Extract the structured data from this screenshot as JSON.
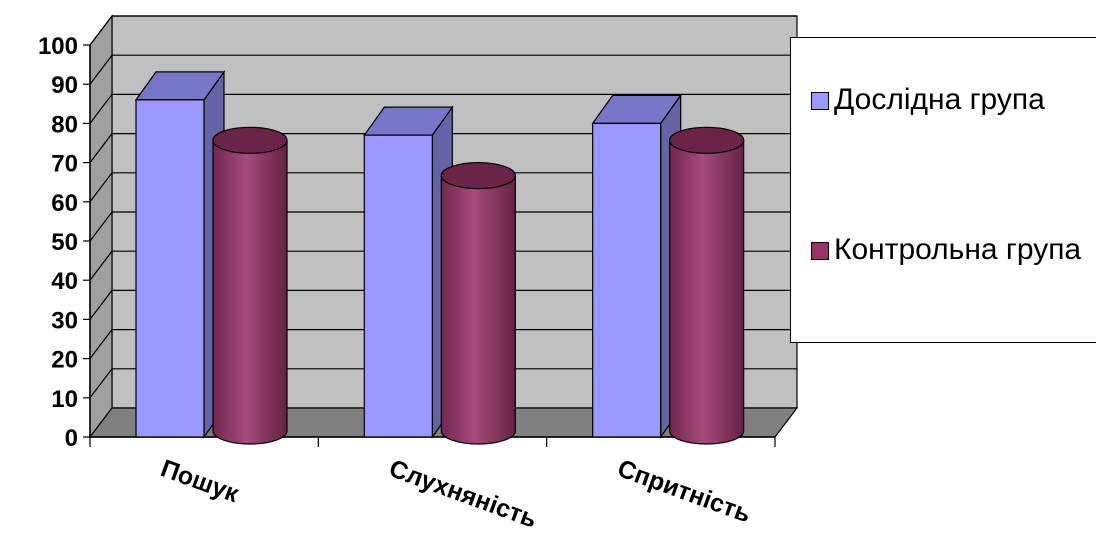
{
  "chart_data": {
    "type": "bar",
    "categories": [
      "Пошук",
      "Слухняність",
      "Спритність"
    ],
    "series": [
      {
        "name": "Дослідна група",
        "values": [
          86,
          77,
          80
        ],
        "color": "#9999FF",
        "shape": "box"
      },
      {
        "name": "Контрольна група",
        "values": [
          79,
          70,
          79
        ],
        "color": "#993366",
        "shape": "cylinder"
      }
    ],
    "yticks": [
      "0",
      "10",
      "20",
      "30",
      "40",
      "50",
      "60",
      "70",
      "80",
      "90",
      "100"
    ],
    "ylim": [
      0,
      100
    ],
    "grid": true,
    "legend_position": "right",
    "three_d": true,
    "colors": {
      "wall": "#C0C0C0",
      "floor": "#808080"
    }
  }
}
